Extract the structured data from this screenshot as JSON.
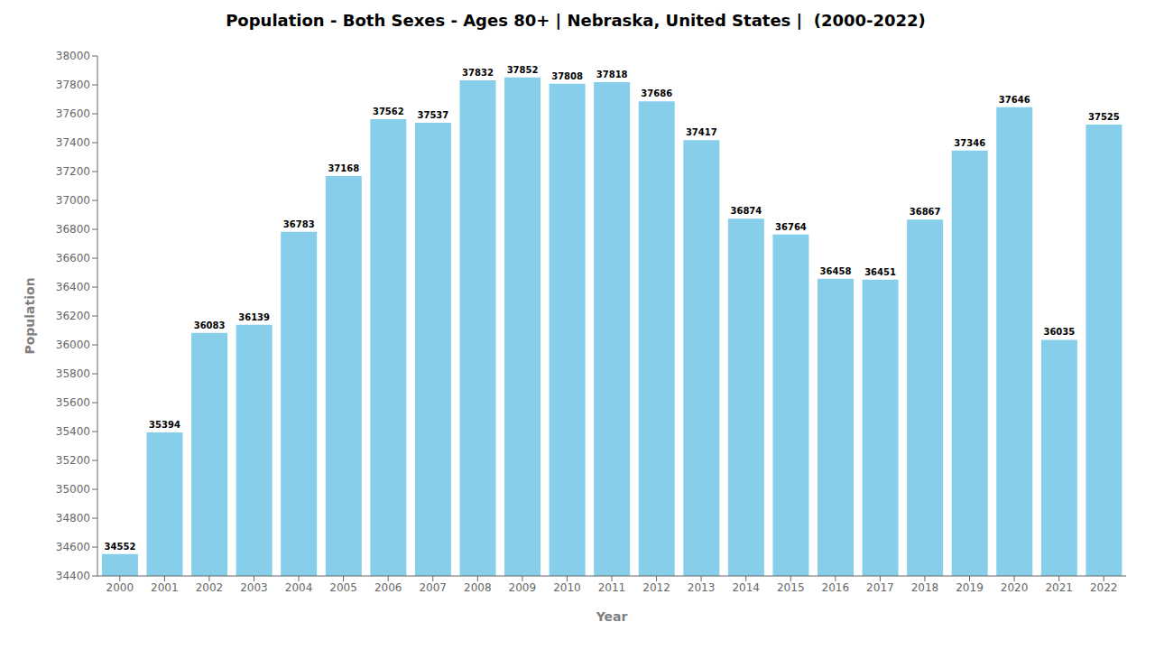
{
  "chart_data": {
    "type": "bar",
    "title": "Population - Both Sexes - Ages 80+ | Nebraska, United States |  (2000-2022)",
    "x_label": "Year",
    "y_label": "Population",
    "categories": [
      "2000",
      "2001",
      "2002",
      "2003",
      "2004",
      "2005",
      "2006",
      "2007",
      "2008",
      "2009",
      "2010",
      "2011",
      "2012",
      "2013",
      "2014",
      "2015",
      "2016",
      "2017",
      "2018",
      "2019",
      "2020",
      "2021",
      "2022"
    ],
    "values": [
      34552,
      35394,
      36083,
      36139,
      36783,
      37168,
      37562,
      37537,
      37832,
      37852,
      37808,
      37818,
      37686,
      37417,
      36874,
      36764,
      36458,
      36451,
      36867,
      37346,
      37646,
      36035,
      37525
    ],
    "color": "#87ceeb",
    "ylim": [
      34400,
      38000
    ],
    "yticks": [
      34400,
      34600,
      34800,
      35000,
      35200,
      35400,
      35600,
      35800,
      36000,
      36200,
      36400,
      36600,
      36800,
      37000,
      37200,
      37400,
      37600,
      37800,
      38000
    ],
    "grid": false,
    "data_labels": true
  }
}
